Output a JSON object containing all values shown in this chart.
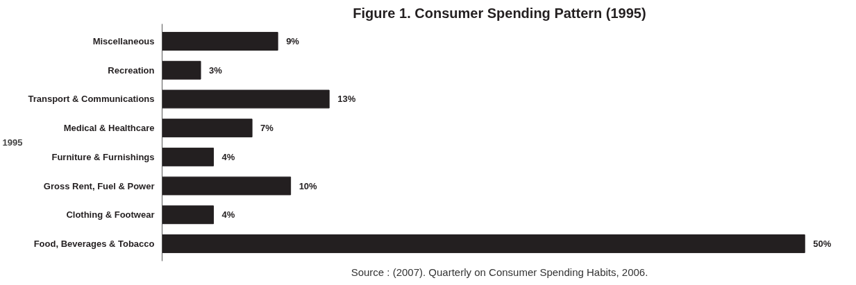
{
  "chart_data": {
    "type": "bar",
    "orientation": "horizontal",
    "title": "Figure 1. Consumer Spending Pattern (1995)",
    "ylabel": "1995",
    "categories": [
      "Miscellaneous",
      "Recreation",
      "Transport & Communications",
      "Medical & Healthcare",
      "Furniture & Furnishings",
      "Gross Rent, Fuel & Power",
      "Clothing & Footwear",
      "Food, Beverages & Tobacco"
    ],
    "values": [
      9,
      3,
      13,
      7,
      4,
      10,
      4,
      50
    ],
    "value_labels": [
      "9%",
      "3%",
      "13%",
      "7%",
      "4%",
      "10%",
      "4%",
      "50%"
    ],
    "color": "#231f20",
    "grid": false,
    "annotations": [
      "Source : (2007). Quarterly on Consumer Spending Habits, 2006."
    ]
  }
}
